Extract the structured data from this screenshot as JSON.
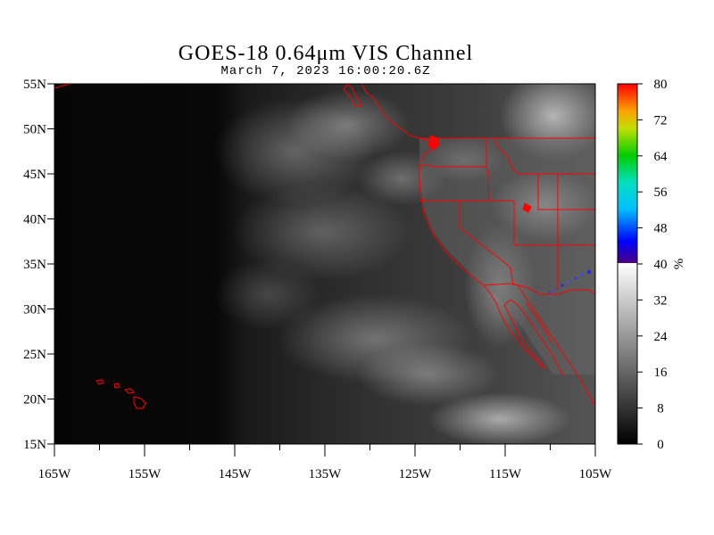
{
  "title": "GOES-18  0.64μm VIS Channel",
  "subtitle": "March  7,  2023 16:00:20.6Z",
  "map": {
    "lon_range": [
      -165,
      -105
    ],
    "lat_range": [
      15,
      55
    ],
    "lon_ticks": [
      {
        "value": -165,
        "label": "165W"
      },
      {
        "value": -155,
        "label": "155W"
      },
      {
        "value": -145,
        "label": "145W"
      },
      {
        "value": -135,
        "label": "135W"
      },
      {
        "value": -125,
        "label": "125W"
      },
      {
        "value": -115,
        "label": "115W"
      },
      {
        "value": -105,
        "label": "105W"
      }
    ],
    "lat_ticks": [
      {
        "value": 55,
        "label": "55N"
      },
      {
        "value": 50,
        "label": "50N"
      },
      {
        "value": 45,
        "label": "45N"
      },
      {
        "value": 40,
        "label": "40N"
      },
      {
        "value": 35,
        "label": "35N"
      },
      {
        "value": 30,
        "label": "30N"
      },
      {
        "value": 25,
        "label": "25N"
      },
      {
        "value": 20,
        "label": "20N"
      },
      {
        "value": 15,
        "label": "15N"
      }
    ],
    "boundary_color": "#ff0000"
  },
  "colorbar": {
    "range": [
      0,
      80
    ],
    "unit": "%",
    "ticks": [
      {
        "value": 80,
        "label": "80"
      },
      {
        "value": 72,
        "label": "72"
      },
      {
        "value": 64,
        "label": "64"
      },
      {
        "value": 56,
        "label": "56"
      },
      {
        "value": 48,
        "label": "48"
      },
      {
        "value": 40,
        "label": "40"
      },
      {
        "value": 32,
        "label": "32"
      },
      {
        "value": 24,
        "label": "24"
      },
      {
        "value": 16,
        "label": "16"
      },
      {
        "value": 8,
        "label": "8"
      },
      {
        "value": 0,
        "label": "0"
      }
    ],
    "grayscale_range": [
      0,
      40
    ],
    "color_range": [
      40,
      80
    ]
  }
}
